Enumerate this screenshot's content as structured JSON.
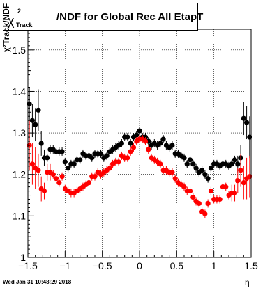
{
  "title": {
    "symbol": "χ",
    "sup": "2",
    "sub": "Track",
    "text": "/NDF for Global Rec All EtapT"
  },
  "ylabel": "χ²Track/NDF",
  "xlabel": "η",
  "footer": "Wed Jan 31 10:48:29 2018",
  "chart_data": {
    "type": "scatter",
    "xlim": [
      -1.5,
      1.5
    ],
    "ylim": [
      1.0,
      1.55
    ],
    "grid": true,
    "x_ticks": [
      -1.5,
      -1,
      -0.5,
      0,
      0.5,
      1,
      1.5
    ],
    "x_tick_labels": [
      "−1.5",
      "−1",
      "−0.5",
      "0",
      "0.5",
      "1",
      "1.5"
    ],
    "y_ticks": [
      1,
      1.1,
      1.2,
      1.3,
      1.4,
      1.5
    ],
    "y_tick_labels": [
      "1",
      "1.1",
      "1.2",
      "1.3",
      "1.4",
      "1.5"
    ],
    "series": [
      {
        "color": "#000000",
        "points": [
          [
            -1.48,
            1.37,
            0.04
          ],
          [
            -1.44,
            1.33,
            0.04
          ],
          [
            -1.4,
            1.32,
            0.04
          ],
          [
            -1.36,
            1.355,
            0.05
          ],
          [
            -1.32,
            1.275,
            0.03
          ],
          [
            -1.28,
            1.24,
            0.02
          ],
          [
            -1.24,
            1.24,
            0.01
          ],
          [
            -1.2,
            1.26,
            0.01
          ],
          [
            -1.16,
            1.26,
            0.01
          ],
          [
            -1.12,
            1.255,
            0.01
          ],
          [
            -1.08,
            1.255,
            0.01
          ],
          [
            -1.04,
            1.255,
            0.01
          ],
          [
            -1.0,
            1.23,
            0.01
          ],
          [
            -0.96,
            1.215,
            0.01
          ],
          [
            -0.92,
            1.225,
            0.01
          ],
          [
            -0.88,
            1.225,
            0.01
          ],
          [
            -0.84,
            1.235,
            0.01
          ],
          [
            -0.8,
            1.235,
            0.01
          ],
          [
            -0.76,
            1.25,
            0.01
          ],
          [
            -0.72,
            1.245,
            0.01
          ],
          [
            -0.68,
            1.245,
            0.01
          ],
          [
            -0.64,
            1.24,
            0.01
          ],
          [
            -0.6,
            1.25,
            0.01
          ],
          [
            -0.56,
            1.25,
            0.01
          ],
          [
            -0.52,
            1.25,
            0.01
          ],
          [
            -0.48,
            1.24,
            0.01
          ],
          [
            -0.44,
            1.245,
            0.01
          ],
          [
            -0.4,
            1.255,
            0.01
          ],
          [
            -0.36,
            1.26,
            0.01
          ],
          [
            -0.32,
            1.265,
            0.01
          ],
          [
            -0.28,
            1.27,
            0.01
          ],
          [
            -0.24,
            1.275,
            0.01
          ],
          [
            -0.2,
            1.29,
            0.01
          ],
          [
            -0.16,
            1.29,
            0.01
          ],
          [
            -0.12,
            1.275,
            0.01
          ],
          [
            -0.08,
            1.29,
            0.01
          ],
          [
            -0.04,
            1.295,
            0.01
          ],
          [
            0.0,
            1.305,
            0.01
          ],
          [
            0.04,
            1.29,
            0.01
          ],
          [
            0.08,
            1.29,
            0.01
          ],
          [
            0.12,
            1.28,
            0.01
          ],
          [
            0.16,
            1.27,
            0.01
          ],
          [
            0.2,
            1.275,
            0.01
          ],
          [
            0.24,
            1.27,
            0.01
          ],
          [
            0.28,
            1.275,
            0.01
          ],
          [
            0.32,
            1.285,
            0.01
          ],
          [
            0.36,
            1.27,
            0.01
          ],
          [
            0.4,
            1.265,
            0.01
          ],
          [
            0.44,
            1.27,
            0.01
          ],
          [
            0.48,
            1.25,
            0.01
          ],
          [
            0.52,
            1.25,
            0.01
          ],
          [
            0.56,
            1.245,
            0.01
          ],
          [
            0.6,
            1.24,
            0.01
          ],
          [
            0.64,
            1.225,
            0.01
          ],
          [
            0.68,
            1.235,
            0.01
          ],
          [
            0.72,
            1.225,
            0.01
          ],
          [
            0.76,
            1.215,
            0.01
          ],
          [
            0.8,
            1.205,
            0.01
          ],
          [
            0.84,
            1.21,
            0.01
          ],
          [
            0.88,
            1.2,
            0.01
          ],
          [
            0.92,
            1.19,
            0.01
          ],
          [
            0.96,
            1.215,
            0.01
          ],
          [
            1.0,
            1.225,
            0.01
          ],
          [
            1.04,
            1.225,
            0.01
          ],
          [
            1.08,
            1.22,
            0.01
          ],
          [
            1.12,
            1.225,
            0.01
          ],
          [
            1.16,
            1.225,
            0.01
          ],
          [
            1.2,
            1.22,
            0.01
          ],
          [
            1.24,
            1.225,
            0.01
          ],
          [
            1.28,
            1.235,
            0.01
          ],
          [
            1.32,
            1.225,
            0.02
          ],
          [
            1.36,
            1.24,
            0.03
          ],
          [
            1.4,
            1.335,
            0.04
          ],
          [
            1.44,
            1.325,
            0.04
          ],
          [
            1.48,
            1.29,
            0.05
          ]
        ]
      },
      {
        "color": "#ff0000",
        "points": [
          [
            -1.48,
            1.27,
            0.06
          ],
          [
            -1.44,
            1.225,
            0.05
          ],
          [
            -1.4,
            1.215,
            0.05
          ],
          [
            -1.36,
            1.21,
            0.04
          ],
          [
            -1.32,
            1.165,
            0.03
          ],
          [
            -1.28,
            1.16,
            0.02
          ],
          [
            -1.24,
            1.205,
            0.02
          ],
          [
            -1.2,
            1.205,
            0.02
          ],
          [
            -1.16,
            1.2,
            0.01
          ],
          [
            -1.12,
            1.19,
            0.01
          ],
          [
            -1.08,
            1.18,
            0.01
          ],
          [
            -1.04,
            1.195,
            0.01
          ],
          [
            -1.0,
            1.165,
            0.01
          ],
          [
            -0.96,
            1.16,
            0.01
          ],
          [
            -0.92,
            1.155,
            0.01
          ],
          [
            -0.88,
            1.155,
            0.01
          ],
          [
            -0.84,
            1.16,
            0.01
          ],
          [
            -0.8,
            1.165,
            0.01
          ],
          [
            -0.76,
            1.17,
            0.01
          ],
          [
            -0.72,
            1.175,
            0.01
          ],
          [
            -0.68,
            1.18,
            0.01
          ],
          [
            -0.64,
            1.195,
            0.01
          ],
          [
            -0.6,
            1.195,
            0.01
          ],
          [
            -0.56,
            1.205,
            0.01
          ],
          [
            -0.52,
            1.2,
            0.01
          ],
          [
            -0.48,
            1.205,
            0.01
          ],
          [
            -0.44,
            1.21,
            0.01
          ],
          [
            -0.4,
            1.215,
            0.01
          ],
          [
            -0.36,
            1.225,
            0.01
          ],
          [
            -0.32,
            1.23,
            0.01
          ],
          [
            -0.28,
            1.23,
            0.01
          ],
          [
            -0.24,
            1.245,
            0.01
          ],
          [
            -0.2,
            1.24,
            0.01
          ],
          [
            -0.16,
            1.24,
            0.01
          ],
          [
            -0.12,
            1.255,
            0.01
          ],
          [
            -0.08,
            1.265,
            0.01
          ],
          [
            -0.04,
            1.28,
            0.01
          ],
          [
            0.0,
            1.285,
            0.01
          ],
          [
            0.04,
            1.285,
            0.01
          ],
          [
            0.08,
            1.28,
            0.01
          ],
          [
            0.12,
            1.26,
            0.01
          ],
          [
            0.16,
            1.24,
            0.01
          ],
          [
            0.2,
            1.235,
            0.01
          ],
          [
            0.24,
            1.23,
            0.01
          ],
          [
            0.28,
            1.225,
            0.01
          ],
          [
            0.32,
            1.21,
            0.01
          ],
          [
            0.36,
            1.21,
            0.01
          ],
          [
            0.4,
            1.205,
            0.01
          ],
          [
            0.44,
            1.205,
            0.01
          ],
          [
            0.48,
            1.19,
            0.01
          ],
          [
            0.52,
            1.18,
            0.01
          ],
          [
            0.56,
            1.175,
            0.01
          ],
          [
            0.6,
            1.17,
            0.01
          ],
          [
            0.64,
            1.16,
            0.01
          ],
          [
            0.68,
            1.16,
            0.01
          ],
          [
            0.72,
            1.145,
            0.01
          ],
          [
            0.76,
            1.135,
            0.01
          ],
          [
            0.8,
            1.13,
            0.01
          ],
          [
            0.84,
            1.11,
            0.01
          ],
          [
            0.88,
            1.105,
            0.01
          ],
          [
            0.92,
            1.13,
            0.01
          ],
          [
            0.96,
            1.16,
            0.01
          ],
          [
            1.0,
            1.14,
            0.01
          ],
          [
            1.04,
            1.14,
            0.01
          ],
          [
            1.08,
            1.14,
            0.01
          ],
          [
            1.12,
            1.17,
            0.01
          ],
          [
            1.16,
            1.17,
            0.01
          ],
          [
            1.2,
            1.15,
            0.01
          ],
          [
            1.24,
            1.155,
            0.02
          ],
          [
            1.28,
            1.155,
            0.02
          ],
          [
            1.32,
            1.185,
            0.03
          ],
          [
            1.36,
            1.21,
            0.04
          ],
          [
            1.4,
            1.18,
            0.04
          ],
          [
            1.44,
            1.19,
            0.05
          ],
          [
            1.48,
            1.195,
            0.05
          ]
        ]
      }
    ]
  }
}
